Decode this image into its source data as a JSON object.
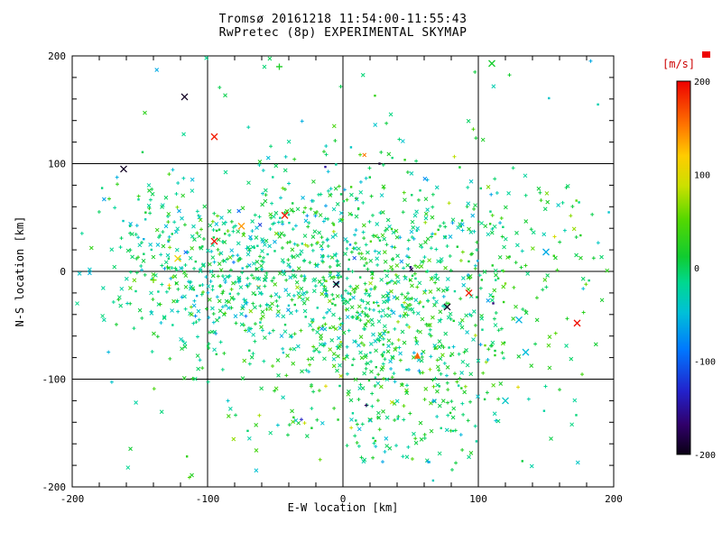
{
  "figure": {
    "background": "#ffffff"
  },
  "chart_data": {
    "type": "scatter",
    "title": "Tromsø 20161218 11:54:00-11:55:43",
    "subtitle": "RwPretec (8p) EXPERIMENTAL SKYMAP",
    "xlabel": "E-W location [km]",
    "ylabel": "N-S location [km]",
    "xlim": [
      -200,
      200
    ],
    "ylim": [
      -200,
      200
    ],
    "xticks": [
      -200,
      -100,
      0,
      100,
      200
    ],
    "yticks": [
      -200,
      -100,
      0,
      100,
      200
    ],
    "minor_tick_step": 20,
    "grid": true,
    "axis_color": "#000000",
    "text_color": "#000000",
    "colorbar": {
      "label": "[m/s]",
      "label_color": "#cc0000",
      "ticks": [
        200,
        100,
        0,
        -100,
        -200
      ],
      "lim": [
        -200,
        200
      ],
      "max_marker_color": "#ee0000",
      "stops": [
        {
          "t": 0.0,
          "color": "#0a0014"
        },
        {
          "t": 0.08,
          "color": "#30006a"
        },
        {
          "t": 0.17,
          "color": "#2222cc"
        },
        {
          "t": 0.28,
          "color": "#0077ff"
        },
        {
          "t": 0.38,
          "color": "#00c0d8"
        },
        {
          "t": 0.46,
          "color": "#00d890"
        },
        {
          "t": 0.53,
          "color": "#10cc30"
        },
        {
          "t": 0.63,
          "color": "#55d800"
        },
        {
          "t": 0.72,
          "color": "#cce000"
        },
        {
          "t": 0.8,
          "color": "#ffcc00"
        },
        {
          "t": 0.88,
          "color": "#ff7700"
        },
        {
          "t": 1.0,
          "color": "#ee0000"
        }
      ]
    },
    "cloud": {
      "seed": 20161218,
      "velocity_sigma": 30,
      "outlier_fraction": 0.012,
      "clusters": [
        {
          "type": "gauss",
          "cx": -95,
          "cy": 5,
          "sx": 45,
          "sy": 38,
          "voff": -12,
          "n": 450
        },
        {
          "type": "gauss",
          "cx": 35,
          "cy": -30,
          "sx": 60,
          "sy": 55,
          "voff": 5,
          "n": 850
        },
        {
          "type": "gauss",
          "cx": 15,
          "cy": 55,
          "sx": 80,
          "sy": 35,
          "voff": -5,
          "n": 150
        },
        {
          "type": "gauss",
          "cx": 25,
          "cy": -140,
          "sx": 45,
          "sy": 28,
          "voff": -10,
          "n": 80
        },
        {
          "type": "uniform",
          "x0": -180,
          "x1": 195,
          "y0": -195,
          "y1": 198,
          "voff": 0,
          "n": 120
        }
      ]
    },
    "outlier_points": [
      {
        "x": -162,
        "y": 95,
        "v": -195,
        "marker": "cross"
      },
      {
        "x": -117,
        "y": 162,
        "v": -195,
        "marker": "cross"
      },
      {
        "x": -95,
        "y": 125,
        "v": 190,
        "marker": "cross"
      },
      {
        "x": -47,
        "y": 190,
        "v": 20,
        "marker": "plus"
      },
      {
        "x": 110,
        "y": 193,
        "v": 15,
        "marker": "cross"
      },
      {
        "x": 27,
        "y": 100,
        "v": -190,
        "marker": "dot"
      },
      {
        "x": -13,
        "y": 97,
        "v": -150,
        "marker": "dot"
      },
      {
        "x": -75,
        "y": 42,
        "v": 140,
        "marker": "cross"
      },
      {
        "x": -43,
        "y": 52,
        "v": 190,
        "marker": "cross"
      },
      {
        "x": -95,
        "y": 28,
        "v": 195,
        "marker": "cross"
      },
      {
        "x": -122,
        "y": 12,
        "v": 110,
        "marker": "cross"
      },
      {
        "x": -140,
        "y": -8,
        "v": 60,
        "marker": "plus"
      },
      {
        "x": -5,
        "y": -12,
        "v": -195,
        "marker": "cross"
      },
      {
        "x": 50,
        "y": 4,
        "v": -160,
        "marker": "dot"
      },
      {
        "x": 93,
        "y": -20,
        "v": 190,
        "marker": "cross"
      },
      {
        "x": 77,
        "y": -33,
        "v": -195,
        "marker": "cross"
      },
      {
        "x": 130,
        "y": -45,
        "v": -55,
        "marker": "cross"
      },
      {
        "x": 173,
        "y": -48,
        "v": 195,
        "marker": "cross"
      },
      {
        "x": 135,
        "y": -75,
        "v": -50,
        "marker": "cross"
      },
      {
        "x": 55,
        "y": -78,
        "v": 160,
        "marker": "triangle"
      },
      {
        "x": 120,
        "y": -120,
        "v": -40,
        "marker": "cross"
      },
      {
        "x": 150,
        "y": 18,
        "v": -60,
        "marker": "cross"
      }
    ]
  }
}
